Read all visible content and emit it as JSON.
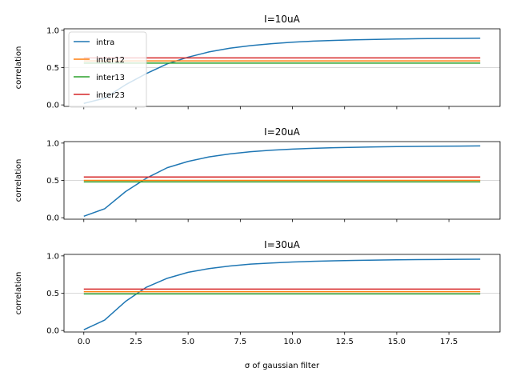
{
  "chart_data": [
    {
      "type": "line",
      "title": "I=10uA",
      "xlabel": "",
      "ylabel": "correlation",
      "xlim": [
        -0.95,
        19.95
      ],
      "ylim": [
        -0.02,
        1.02
      ],
      "yticks": [
        0.0,
        0.5,
        1.0
      ],
      "ytick_labels": [
        "0.0",
        "0.5",
        "1.0"
      ],
      "xticks": [
        0.0,
        2.5,
        5.0,
        7.5,
        10.0,
        12.5,
        15.0,
        17.5
      ],
      "xtick_labels": [],
      "grid_y": [
        0.5
      ],
      "legend": "top-left",
      "x": [
        0,
        1,
        2,
        3,
        4,
        5,
        6,
        7,
        8,
        9,
        10,
        11,
        12,
        13,
        14,
        15,
        16,
        17,
        18,
        19
      ],
      "series": [
        {
          "name": "intra",
          "color": "#1f77b4",
          "values": [
            0.02,
            0.09,
            0.27,
            0.42,
            0.55,
            0.64,
            0.71,
            0.76,
            0.795,
            0.82,
            0.84,
            0.855,
            0.865,
            0.872,
            0.878,
            0.883,
            0.887,
            0.89,
            0.892,
            0.894
          ]
        },
        {
          "name": "inter12",
          "color": "#ff7f0e",
          "values": [
            0.59,
            0.59,
            0.59,
            0.59,
            0.59,
            0.59,
            0.59,
            0.59,
            0.59,
            0.59,
            0.59,
            0.59,
            0.59,
            0.59,
            0.59,
            0.59,
            0.59,
            0.59,
            0.59,
            0.59
          ]
        },
        {
          "name": "inter13",
          "color": "#2ca02c",
          "values": [
            0.56,
            0.56,
            0.56,
            0.56,
            0.56,
            0.56,
            0.56,
            0.56,
            0.56,
            0.56,
            0.56,
            0.56,
            0.56,
            0.56,
            0.56,
            0.56,
            0.56,
            0.56,
            0.56,
            0.56
          ]
        },
        {
          "name": "inter23",
          "color": "#d62728",
          "values": [
            0.63,
            0.63,
            0.63,
            0.63,
            0.63,
            0.63,
            0.63,
            0.63,
            0.63,
            0.63,
            0.63,
            0.63,
            0.63,
            0.63,
            0.63,
            0.63,
            0.63,
            0.63,
            0.63,
            0.63
          ]
        }
      ]
    },
    {
      "type": "line",
      "title": "I=20uA",
      "xlabel": "",
      "ylabel": "correlation",
      "xlim": [
        -0.95,
        19.95
      ],
      "ylim": [
        -0.02,
        1.02
      ],
      "yticks": [
        0.0,
        0.5,
        1.0
      ],
      "ytick_labels": [
        "0.0",
        "0.5",
        "1.0"
      ],
      "xticks": [
        0.0,
        2.5,
        5.0,
        7.5,
        10.0,
        12.5,
        15.0,
        17.5
      ],
      "xtick_labels": [],
      "grid_y": [
        0.5
      ],
      "x": [
        0,
        1,
        2,
        3,
        4,
        5,
        6,
        7,
        8,
        9,
        10,
        11,
        12,
        13,
        14,
        15,
        16,
        17,
        18,
        19
      ],
      "series": [
        {
          "color": "#1f77b4",
          "values": [
            0.02,
            0.12,
            0.35,
            0.53,
            0.67,
            0.755,
            0.815,
            0.855,
            0.885,
            0.905,
            0.92,
            0.93,
            0.938,
            0.944,
            0.949,
            0.953,
            0.956,
            0.958,
            0.96,
            0.962
          ]
        },
        {
          "color": "#ff7f0e",
          "values": [
            0.5,
            0.5,
            0.5,
            0.5,
            0.5,
            0.5,
            0.5,
            0.5,
            0.5,
            0.5,
            0.5,
            0.5,
            0.5,
            0.5,
            0.5,
            0.5,
            0.5,
            0.5,
            0.5,
            0.5
          ]
        },
        {
          "color": "#2ca02c",
          "values": [
            0.48,
            0.48,
            0.48,
            0.48,
            0.48,
            0.48,
            0.48,
            0.48,
            0.48,
            0.48,
            0.48,
            0.48,
            0.48,
            0.48,
            0.48,
            0.48,
            0.48,
            0.48,
            0.48,
            0.48
          ]
        },
        {
          "color": "#d62728",
          "values": [
            0.545,
            0.545,
            0.545,
            0.545,
            0.545,
            0.545,
            0.545,
            0.545,
            0.545,
            0.545,
            0.545,
            0.545,
            0.545,
            0.545,
            0.545,
            0.545,
            0.545,
            0.545,
            0.545,
            0.545
          ]
        }
      ]
    },
    {
      "type": "line",
      "title": "I=30uA",
      "xlabel": "σ of gaussian filter",
      "ylabel": "correlation",
      "xlim": [
        -0.95,
        19.95
      ],
      "ylim": [
        -0.02,
        1.02
      ],
      "yticks": [
        0.0,
        0.5,
        1.0
      ],
      "ytick_labels": [
        "0.0",
        "0.5",
        "1.0"
      ],
      "xticks": [
        0.0,
        2.5,
        5.0,
        7.5,
        10.0,
        12.5,
        15.0,
        17.5
      ],
      "xtick_labels": [
        "0.0",
        "2.5",
        "5.0",
        "7.5",
        "10.0",
        "12.5",
        "15.0",
        "17.5"
      ],
      "grid_y": [
        0.5
      ],
      "x": [
        0,
        1,
        2,
        3,
        4,
        5,
        6,
        7,
        8,
        9,
        10,
        11,
        12,
        13,
        14,
        15,
        16,
        17,
        18,
        19
      ],
      "series": [
        {
          "color": "#1f77b4",
          "values": [
            0.01,
            0.14,
            0.39,
            0.58,
            0.7,
            0.78,
            0.83,
            0.865,
            0.89,
            0.905,
            0.918,
            0.927,
            0.934,
            0.94,
            0.944,
            0.947,
            0.95,
            0.952,
            0.954,
            0.956
          ]
        },
        {
          "color": "#ff7f0e",
          "values": [
            0.52,
            0.52,
            0.52,
            0.52,
            0.52,
            0.52,
            0.52,
            0.52,
            0.52,
            0.52,
            0.52,
            0.52,
            0.52,
            0.52,
            0.52,
            0.52,
            0.52,
            0.52,
            0.52,
            0.52
          ]
        },
        {
          "color": "#2ca02c",
          "values": [
            0.49,
            0.49,
            0.49,
            0.49,
            0.49,
            0.49,
            0.49,
            0.49,
            0.49,
            0.49,
            0.49,
            0.49,
            0.49,
            0.49,
            0.49,
            0.49,
            0.49,
            0.49,
            0.49,
            0.49
          ]
        },
        {
          "color": "#d62728",
          "values": [
            0.555,
            0.555,
            0.555,
            0.555,
            0.555,
            0.555,
            0.555,
            0.555,
            0.555,
            0.555,
            0.555,
            0.555,
            0.555,
            0.555,
            0.555,
            0.555,
            0.555,
            0.555,
            0.555,
            0.555
          ]
        }
      ]
    }
  ]
}
